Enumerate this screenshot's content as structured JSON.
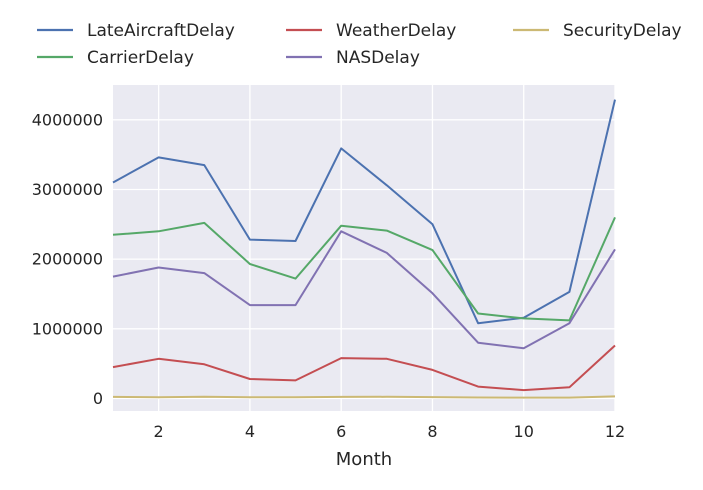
{
  "chart_data": {
    "type": "line",
    "xlabel": "Month",
    "ylabel": "",
    "title": "",
    "x": [
      1,
      2,
      3,
      4,
      5,
      6,
      7,
      8,
      9,
      10,
      11,
      12
    ],
    "xlim": [
      1,
      12
    ],
    "ylim": [
      -180000,
      4500000
    ],
    "xticks": [
      2,
      4,
      6,
      8,
      10,
      12
    ],
    "yticks": [
      0,
      1000000,
      2000000,
      3000000,
      4000000
    ],
    "grid": true,
    "legend_position": "top",
    "background_color": "#eaeaf2",
    "series": [
      {
        "name": "LateAircraftDelay",
        "color": "#4c72b0",
        "values": [
          3100000,
          3460000,
          3350000,
          2280000,
          2260000,
          3590000,
          3060000,
          2500000,
          1080000,
          1160000,
          1530000,
          4290000
        ]
      },
      {
        "name": "CarrierDelay",
        "color": "#55a868",
        "values": [
          2350000,
          2400000,
          2520000,
          1930000,
          1720000,
          2480000,
          2410000,
          2130000,
          1220000,
          1150000,
          1120000,
          2600000
        ]
      },
      {
        "name": "WeatherDelay",
        "color": "#c44e52",
        "values": [
          450000,
          570000,
          490000,
          280000,
          260000,
          580000,
          570000,
          410000,
          170000,
          120000,
          160000,
          760000
        ]
      },
      {
        "name": "NASDelay",
        "color": "#8172b2",
        "values": [
          1750000,
          1880000,
          1800000,
          1340000,
          1340000,
          2400000,
          2090000,
          1510000,
          800000,
          720000,
          1080000,
          2140000
        ]
      },
      {
        "name": "SecurityDelay",
        "color": "#ccb974",
        "values": [
          22000,
          18000,
          26000,
          16000,
          17000,
          23000,
          24000,
          20000,
          14000,
          12000,
          12000,
          30000
        ]
      }
    ]
  }
}
